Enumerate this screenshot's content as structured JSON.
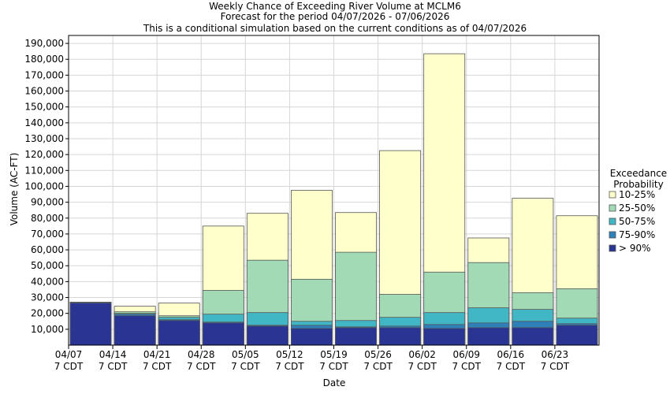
{
  "chart_data": {
    "type": "bar",
    "title": "Weekly Chance of Exceeding River Volume at MCLM6",
    "subtitle_lines": [
      "Forecast for the period 04/07/2026 - 07/06/2026",
      "This is a conditional simulation based on the current conditions as of 04/07/2026"
    ],
    "xlabel": "Date",
    "ylabel": "Volume (AC-FT)",
    "ylim": [
      0,
      195000
    ],
    "y_ticks": [
      10000,
      20000,
      30000,
      40000,
      50000,
      60000,
      70000,
      80000,
      90000,
      100000,
      110000,
      120000,
      130000,
      140000,
      150000,
      160000,
      170000,
      180000,
      190000
    ],
    "y_tick_labels": [
      "10,000",
      "20,000",
      "30,000",
      "40,000",
      "50,000",
      "60,000",
      "70,000",
      "80,000",
      "90,000",
      "100,000",
      "110,000",
      "120,000",
      "130,000",
      "140,000",
      "150,000",
      "160,000",
      "170,000",
      "180,000",
      "190,000"
    ],
    "x_tick_labels": [
      {
        "date": "04/07",
        "tz": "7 CDT"
      },
      {
        "date": "04/14",
        "tz": "7 CDT"
      },
      {
        "date": "04/21",
        "tz": "7 CDT"
      },
      {
        "date": "04/28",
        "tz": "7 CDT"
      },
      {
        "date": "05/05",
        "tz": "7 CDT"
      },
      {
        "date": "05/12",
        "tz": "7 CDT"
      },
      {
        "date": "05/19",
        "tz": "7 CDT"
      },
      {
        "date": "05/26",
        "tz": "7 CDT"
      },
      {
        "date": "06/02",
        "tz": "7 CDT"
      },
      {
        "date": "06/09",
        "tz": "7 CDT"
      },
      {
        "date": "06/16",
        "tz": "7 CDT"
      },
      {
        "date": "06/23",
        "tz": "7 CDT"
      }
    ],
    "categories": [
      "04/07",
      "04/14",
      "04/21",
      "04/28",
      "05/05",
      "05/12",
      "05/19",
      "05/26",
      "06/02",
      "06/09",
      "06/16",
      "06/23"
    ],
    "grid": true,
    "legend": {
      "title_lines": [
        "Exceedance",
        "Probability"
      ],
      "placement": "right"
    },
    "series": [
      {
        "name": "> 90%",
        "color": "#2a3593",
        "values": [
          26500,
          18500,
          15500,
          14000,
          12000,
          10500,
          11000,
          11000,
          10500,
          11000,
          11000,
          12500
        ]
      },
      {
        "name": "75-90%",
        "color": "#2f7fb8",
        "values": [
          27000,
          19500,
          16000,
          14500,
          12500,
          12500,
          11500,
          12000,
          13000,
          14000,
          15000,
          13500
        ]
      },
      {
        "name": "50-75%",
        "color": "#41b6c4",
        "values": [
          27000,
          20000,
          17500,
          19500,
          20500,
          15000,
          15500,
          17500,
          20500,
          23500,
          22500,
          17000
        ]
      },
      {
        "name": "25-50%",
        "color": "#a1dab4",
        "values": [
          27000,
          21000,
          18500,
          34500,
          53500,
          41500,
          58500,
          32000,
          46000,
          52000,
          33000,
          35500
        ]
      },
      {
        "name": "10-25%",
        "color": "#ffffcc",
        "values": [
          27000,
          24500,
          26500,
          75000,
          83000,
          97500,
          83500,
          122500,
          183500,
          67500,
          92500,
          81500
        ]
      }
    ]
  }
}
